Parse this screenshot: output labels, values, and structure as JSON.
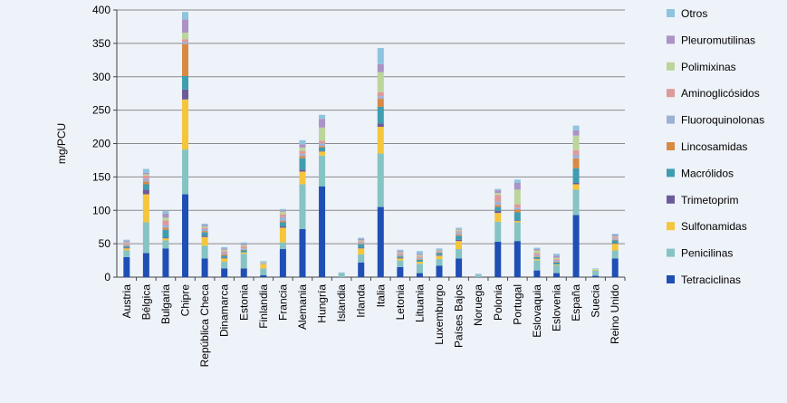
{
  "chart_data": {
    "type": "bar",
    "stacked": true,
    "title": "",
    "xlabel": "",
    "ylabel": "mg/PCU",
    "ylim": [
      0,
      400
    ],
    "yticks": [
      0,
      50,
      100,
      150,
      200,
      250,
      300,
      350,
      400
    ],
    "grid": true,
    "legend_position": "right",
    "categories": [
      "Austria",
      "Bélgica",
      "Bulgaria",
      "Chipre",
      "República Checa",
      "Dinamarca",
      "Estonia",
      "Finlandia",
      "Francia",
      "Alemania",
      "Hungría",
      "Islandia",
      "Irlanda",
      "Italia",
      "Letonia",
      "Lituania",
      "Luxemburgo",
      "Países Bajos",
      "Noruega",
      "Polonia",
      "Portugal",
      "Eslovaquia",
      "Eslovenia",
      "España",
      "Suecia",
      "Reino Unido"
    ],
    "series": [
      {
        "name": "Tetraciclinas",
        "color": "#1f4fb5",
        "values": [
          30,
          36,
          43,
          124,
          28,
          13,
          13,
          3,
          42,
          72,
          136,
          0,
          22,
          105,
          15,
          6,
          17,
          28,
          0,
          53,
          54,
          10,
          6,
          93,
          2,
          28
        ]
      },
      {
        "name": "Penicilinas",
        "color": "#86c3c3",
        "values": [
          10,
          46,
          12,
          67,
          19,
          10,
          22,
          10,
          10,
          67,
          46,
          6,
          12,
          80,
          10,
          14,
          10,
          14,
          3,
          30,
          28,
          15,
          12,
          38,
          8,
          12
        ]
      },
      {
        "name": "Sulfonamidas",
        "color": "#f5c63c",
        "values": [
          3,
          42,
          3,
          75,
          13,
          5,
          2,
          6,
          22,
          19,
          6,
          0,
          9,
          40,
          3,
          3,
          5,
          12,
          0,
          13,
          2,
          2,
          1,
          8,
          1,
          10
        ]
      },
      {
        "name": "Trimetoprim",
        "color": "#6b5b9a",
        "values": [
          1,
          7,
          1,
          15,
          2,
          1,
          0,
          0,
          2,
          3,
          1,
          0,
          1,
          5,
          1,
          0,
          1,
          2,
          0,
          3,
          1,
          0,
          0,
          2,
          0,
          1
        ]
      },
      {
        "name": "Macrólidos",
        "color": "#3f9db0",
        "values": [
          2,
          8,
          12,
          20,
          5,
          3,
          3,
          0,
          6,
          17,
          5,
          0,
          5,
          25,
          2,
          3,
          3,
          6,
          0,
          6,
          12,
          3,
          3,
          22,
          0,
          4
        ]
      },
      {
        "name": "Lincosamidas",
        "color": "#d88a45",
        "values": [
          1,
          4,
          3,
          48,
          2,
          2,
          1,
          0,
          2,
          3,
          2,
          0,
          1,
          12,
          1,
          1,
          1,
          2,
          0,
          3,
          4,
          1,
          1,
          15,
          0,
          1
        ]
      },
      {
        "name": "Fluoroquinolonas",
        "color": "#9db1d5",
        "values": [
          2,
          4,
          4,
          3,
          3,
          2,
          2,
          1,
          6,
          3,
          4,
          0,
          2,
          4,
          2,
          2,
          1,
          3,
          1,
          5,
          3,
          2,
          2,
          5,
          0,
          2
        ]
      },
      {
        "name": "Aminoglicósidos",
        "color": "#dd9a9a",
        "values": [
          2,
          5,
          7,
          4,
          2,
          3,
          3,
          1,
          4,
          5,
          4,
          0,
          2,
          6,
          2,
          2,
          1,
          2,
          0,
          10,
          5,
          3,
          2,
          7,
          0,
          2
        ]
      },
      {
        "name": "Polimixinas",
        "color": "#bcd59a",
        "values": [
          1,
          2,
          4,
          10,
          2,
          2,
          2,
          1,
          4,
          5,
          20,
          0,
          1,
          30,
          1,
          2,
          1,
          2,
          0,
          3,
          22,
          4,
          2,
          22,
          1,
          1
        ]
      },
      {
        "name": "Pleuromutilinas",
        "color": "#ab93c5",
        "values": [
          2,
          2,
          6,
          20,
          2,
          2,
          2,
          0,
          2,
          5,
          13,
          0,
          2,
          12,
          2,
          2,
          1,
          1,
          0,
          4,
          10,
          2,
          3,
          8,
          0,
          2
        ]
      },
      {
        "name": "Otros",
        "color": "#8fc4de",
        "values": [
          2,
          6,
          4,
          11,
          2,
          2,
          2,
          2,
          2,
          6,
          6,
          1,
          2,
          24,
          2,
          4,
          2,
          2,
          1,
          2,
          5,
          2,
          3,
          7,
          1,
          2
        ]
      }
    ]
  }
}
